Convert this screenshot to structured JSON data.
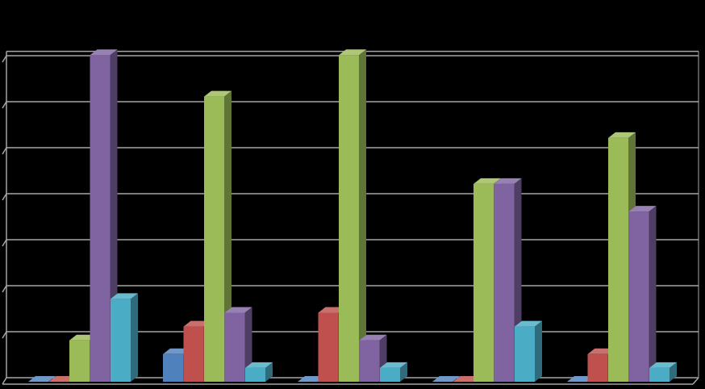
{
  "colors": {
    "background": "#000000",
    "gridline": "#a6a6a6",
    "series": [
      "#4f81bd",
      "#c0504d",
      "#9bbb59",
      "#8064a2",
      "#4bacc6"
    ]
  },
  "chart_data": {
    "type": "bar",
    "style": "3d-clustered-column",
    "title": "",
    "xlabel": "",
    "ylabel": "",
    "legend": "none",
    "grid": true,
    "ylim": [
      0,
      7.2
    ],
    "gridlines": [
      0,
      1,
      2,
      3,
      4,
      5,
      6,
      7
    ],
    "categories": [
      "",
      "",
      "",
      "",
      ""
    ],
    "series": [
      {
        "values": [
          0,
          0.6,
          0,
          0,
          0
        ]
      },
      {
        "values": [
          0,
          1.2,
          1.5,
          0,
          0.6
        ]
      },
      {
        "values": [
          0.9,
          6.2,
          7.1,
          4.3,
          5.3
        ]
      },
      {
        "values": [
          7.1,
          1.5,
          0.9,
          4.3,
          3.7
        ]
      },
      {
        "values": [
          1.8,
          0.3,
          0.3,
          1.2,
          0.3
        ]
      }
    ]
  }
}
